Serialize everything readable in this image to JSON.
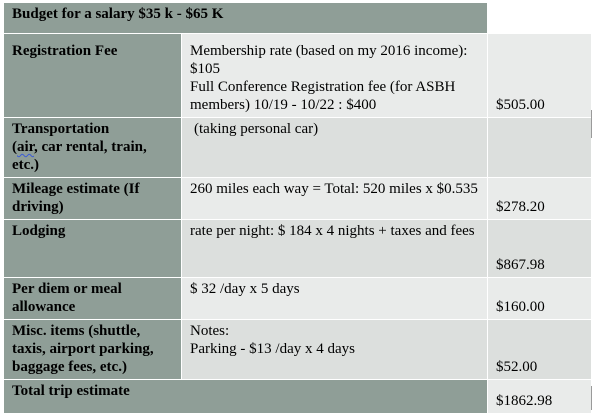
{
  "title": "Budget for a salary $35 k - $65 K",
  "rows": [
    {
      "label": "Registration Fee",
      "description": [
        "Membership rate (based on my 2016 income): $105",
        "Full Conference Registration fee (for ASBH members) 10/19 - 10/22 : $400"
      ],
      "amount": "$505.00"
    },
    {
      "label_parts": [
        "Transportation",
        "(",
        "air",
        ", car rental, train, etc.)"
      ],
      "description": [
        "(taking personal car)"
      ],
      "amount": ""
    },
    {
      "label": "Mileage estimate (If driving)",
      "description": [
        "260 miles each way = Total: 520 miles x $0.535"
      ],
      "amount": "$278.20"
    },
    {
      "label": "Lodging",
      "description": [
        "rate per night: $ 184 x 4 nights + taxes and fees"
      ],
      "amount": "$867.98"
    },
    {
      "label": "Per diem or meal allowance",
      "description": [
        "$ 32 /day x 5 days"
      ],
      "amount": "$160.00"
    },
    {
      "label": "Misc. items (shuttle, taxis, airport parking, baggage fees, etc.)",
      "description": [
        "Notes:",
        "Parking - $13 /day x 4 days"
      ],
      "amount": "$52.00"
    }
  ],
  "total": {
    "label": "Total trip estimate",
    "amount": "$1862.98"
  },
  "colors": {
    "header_dark": "#8f9e97",
    "cell_light": "#e9ebea",
    "cell_mid": "#dcdfdd",
    "spellcheck_underline": "#3a5bd6"
  }
}
